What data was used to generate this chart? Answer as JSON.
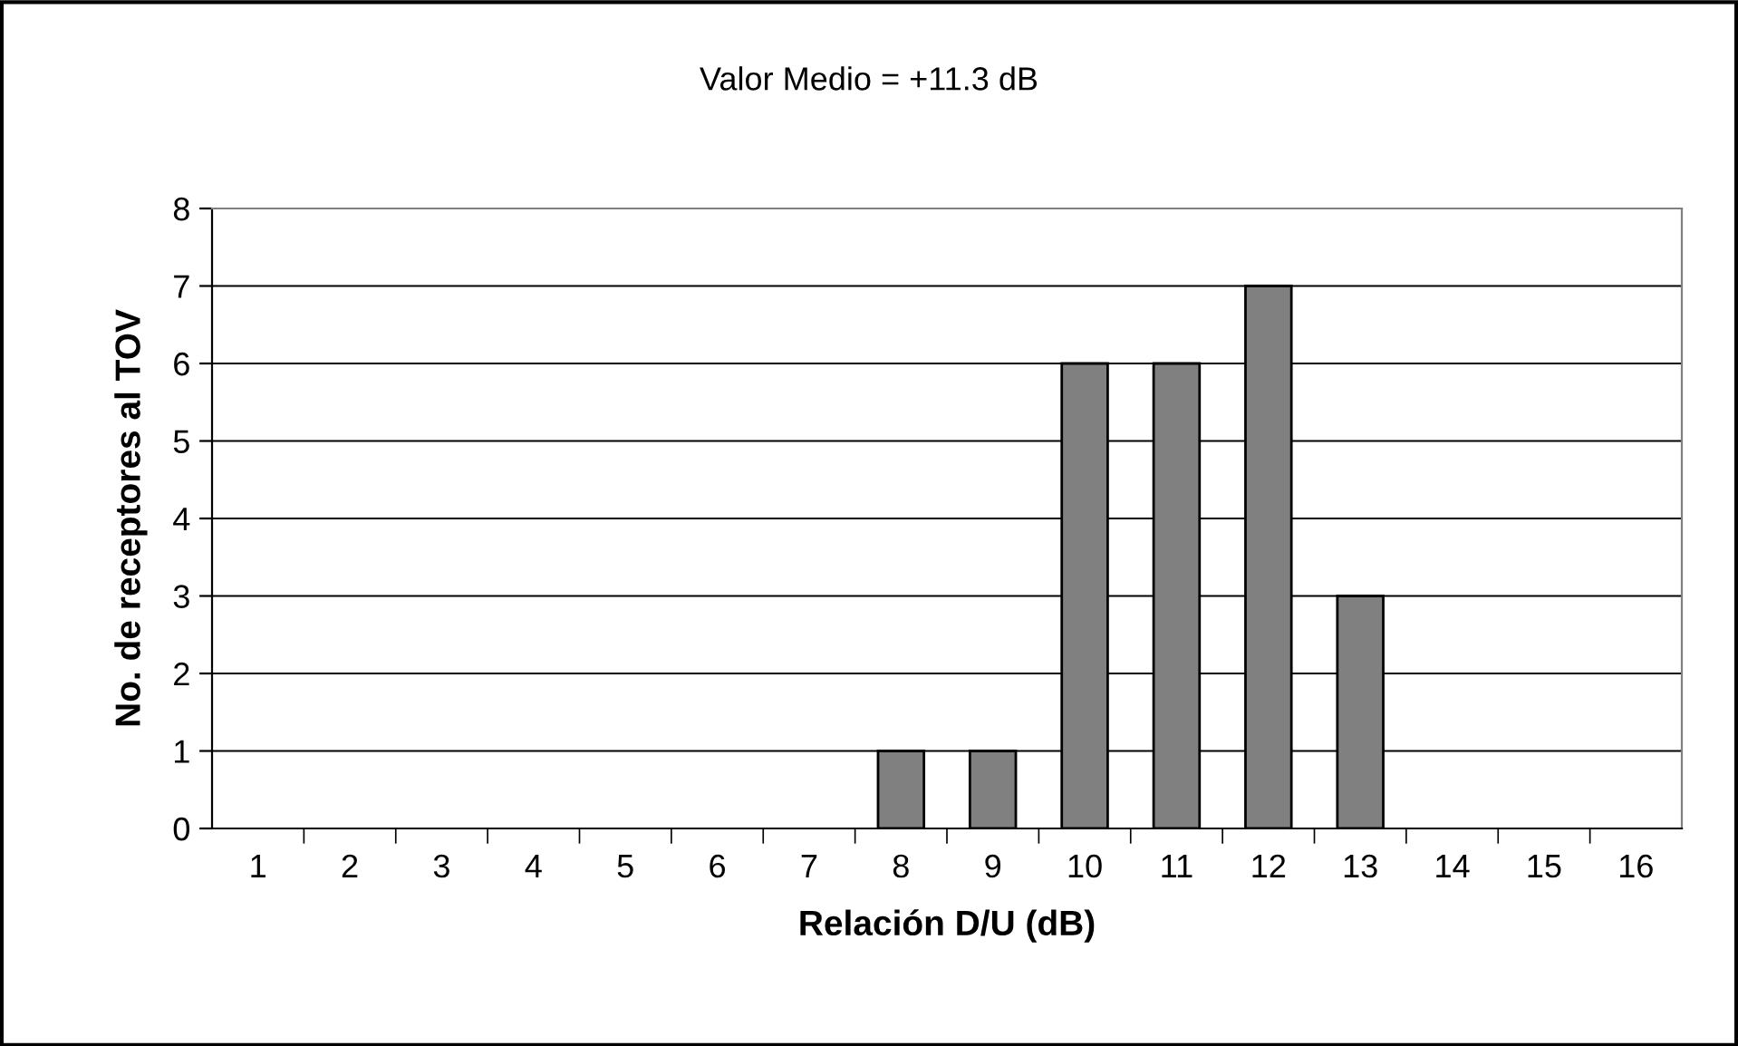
{
  "chart_data": {
    "type": "bar",
    "title": "Valor Medio = +11.3 dB",
    "xlabel": "Relación D/U (dB)",
    "ylabel": "No. de receptores al TOV",
    "categories": [
      "1",
      "2",
      "3",
      "4",
      "5",
      "6",
      "7",
      "8",
      "9",
      "10",
      "11",
      "12",
      "13",
      "14",
      "15",
      "16"
    ],
    "values": [
      0,
      0,
      0,
      0,
      0,
      0,
      0,
      1,
      1,
      6,
      6,
      7,
      3,
      0,
      0,
      0
    ],
    "color": "#808080",
    "ylim": [
      0,
      8
    ],
    "yticks": [
      0,
      1,
      2,
      3,
      4,
      5,
      6,
      7,
      8
    ],
    "grid": "y",
    "legend": false
  }
}
